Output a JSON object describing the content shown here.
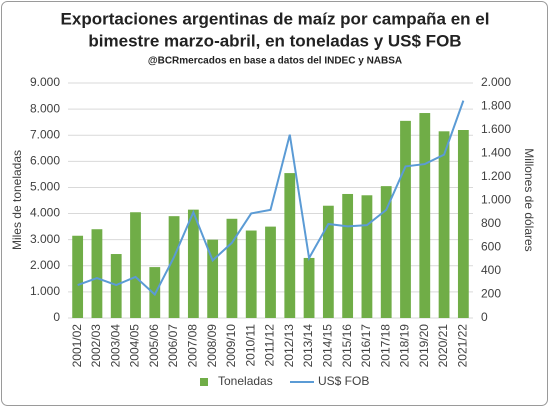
{
  "chart_data": {
    "type": "bar",
    "title": [
      "Exportaciones argentinas de maíz por campaña en el",
      "bimestre marzo-abril, en toneladas y US$ FOB"
    ],
    "subtitle": "@BCRmercados en base a datos del INDEC y NABSA",
    "ylabel": "Miles de toneladas",
    "y2label": "Millones de dólares",
    "categories": [
      "2001/02",
      "2002/03",
      "2003/04",
      "2004/05",
      "2005/06",
      "2006/07",
      "2007/08",
      "2008/09",
      "2009/10",
      "2010/11",
      "2011/12",
      "2012/13",
      "2013/14",
      "2014/15",
      "2015/16",
      "2016/17",
      "2017/18",
      "2018/19",
      "2019/20",
      "2020/21",
      "2021/22"
    ],
    "series": [
      {
        "name": "Toneladas",
        "type": "bar",
        "color": "#70ad47",
        "values": [
          3150,
          3400,
          2450,
          4050,
          1950,
          3900,
          4150,
          3000,
          3800,
          3350,
          3500,
          5550,
          2300,
          4300,
          4750,
          4700,
          5050,
          7550,
          7850,
          7150,
          7200
        ]
      },
      {
        "name": "US$ FOB",
        "type": "line",
        "axis": "y2",
        "color": "#5b9bd5",
        "values": [
          280,
          340,
          280,
          350,
          200,
          520,
          900,
          490,
          640,
          890,
          920,
          1560,
          510,
          800,
          780,
          790,
          920,
          1290,
          1310,
          1390,
          1850
        ]
      }
    ],
    "ylim": [
      0,
      9000
    ],
    "yticks": [
      0,
      {
        "value": 1000,
        "label": "1.000"
      },
      {
        "value": 2000,
        "label": "2.000"
      },
      {
        "value": 3000,
        "label": "3.000"
      },
      {
        "value": 4000,
        "label": "4.000"
      },
      {
        "value": 5000,
        "label": "5.000"
      },
      {
        "value": 6000,
        "label": "6.000"
      },
      {
        "value": 7000,
        "label": "7.000"
      },
      {
        "value": 8000,
        "label": "8.000"
      },
      {
        "value": 9000,
        "label": "9.000"
      }
    ],
    "y2lim": [
      0,
      2000
    ],
    "y2ticks": [
      0,
      200,
      400,
      600,
      800,
      {
        "value": 1000,
        "label": "1.000"
      },
      {
        "value": 1200,
        "label": "1.200"
      },
      {
        "value": 1400,
        "label": "1.400"
      },
      {
        "value": 1600,
        "label": "1.600"
      },
      {
        "value": 1800,
        "label": "1.800"
      },
      {
        "value": 2000,
        "label": "2.000"
      }
    ],
    "grid": true,
    "legend": "bottom"
  }
}
